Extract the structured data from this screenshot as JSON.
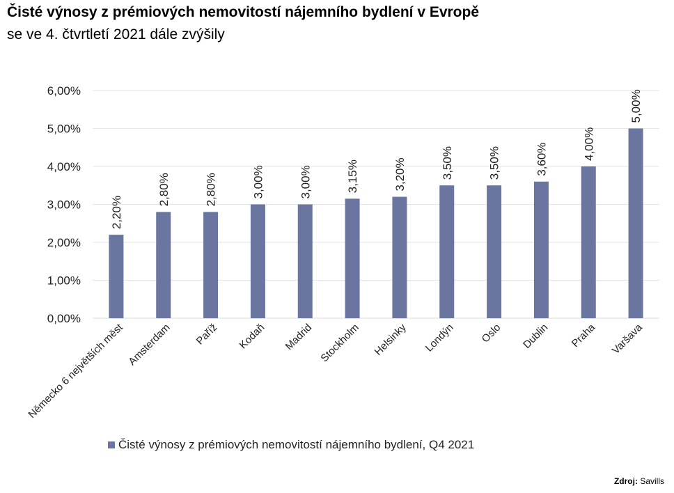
{
  "title": "Čisté výnosy z prémiových nemovitostí nájemního bydlení v Evropě",
  "subtitle": "se ve 4. čtvrtletí 2021 dále zvýšily",
  "source": {
    "label": "Zdroj:",
    "value": "Savills"
  },
  "chart_data": {
    "type": "bar",
    "title": "Čisté výnosy z prémiových nemovitostí nájemního bydlení v Evropě",
    "subtitle": "se ve 4. čtvrtletí 2021 dále zvýšily",
    "categories": [
      "Německo 6 největších měst",
      "Amsterdam",
      "Paříž",
      "Kodaň",
      "Madrid",
      "Stockholm",
      "Helsinky",
      "Londýn",
      "Oslo",
      "Dublin",
      "Praha",
      "Varšava"
    ],
    "series": [
      {
        "name": "Čisté výnosy z prémiových nemovitostí nájemního bydlení, Q4 2021",
        "values": [
          2.2,
          2.8,
          2.8,
          3.0,
          3.0,
          3.15,
          3.2,
          3.5,
          3.5,
          3.6,
          4.0,
          5.0
        ],
        "color": "#6a76a0"
      }
    ],
    "data_labels": [
      "2,20%",
      "2,80%",
      "2,80%",
      "3,00%",
      "3,00%",
      "3,15%",
      "3,20%",
      "3,50%",
      "3,50%",
      "3,60%",
      "4,00%",
      "5,00%"
    ],
    "yticks": [
      0,
      1,
      2,
      3,
      4,
      5,
      6
    ],
    "ytick_labels": [
      "0,00%",
      "1,00%",
      "2,00%",
      "3,00%",
      "4,00%",
      "5,00%",
      "6,00%"
    ],
    "ylim": [
      0,
      6
    ],
    "grid": true,
    "legend_position": "bottom"
  }
}
